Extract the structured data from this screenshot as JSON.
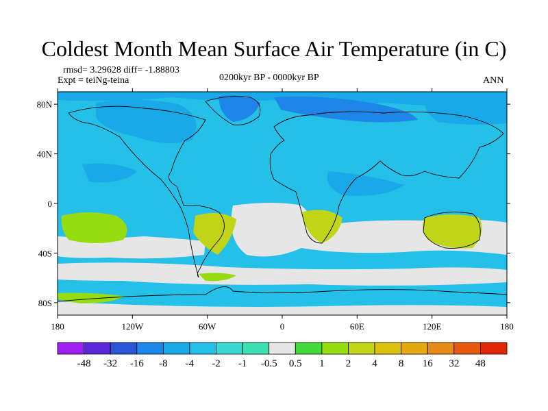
{
  "title": "Coldest Month Mean Surface Air Temperature (in C)",
  "stats": "rmsd= 3.29628 diff= -1.88803",
  "experiment": "Expt = teiNg-teina",
  "period": "0200kyr BP - 0000kyr BP",
  "season": "ANN",
  "axes": {
    "lon_labels": [
      "180",
      "120W",
      "60W",
      "0",
      "60E",
      "120E",
      "180"
    ],
    "lat_labels": [
      "80N",
      "40N",
      "0",
      "40S",
      "80S"
    ]
  },
  "colorbar": {
    "colors": [
      "#a020f0",
      "#5a28d8",
      "#2a56d6",
      "#1d86e8",
      "#19a8e8",
      "#25c0e8",
      "#3cd9d0",
      "#3ee0b0",
      "#e6e6e6",
      "#44d838",
      "#96dc10",
      "#c0d418",
      "#dcc010",
      "#e6a810",
      "#e68a18",
      "#e65a10",
      "#e02808"
    ],
    "labels": [
      "-48",
      "-32",
      "-16",
      "-8",
      "-4",
      "-2",
      "-1",
      "-0.5",
      "0.5",
      "1",
      "2",
      "4",
      "8",
      "16",
      "32",
      "48"
    ]
  },
  "field_colors": {
    "ocean_base": "#25c0e8",
    "neutral": "#e6e6e6",
    "cool": "#19a8e8",
    "cold": "#1d86e8",
    "mild_warm": "#96dc10",
    "warm": "#c0d418",
    "teal": "#3ee0b0"
  }
}
